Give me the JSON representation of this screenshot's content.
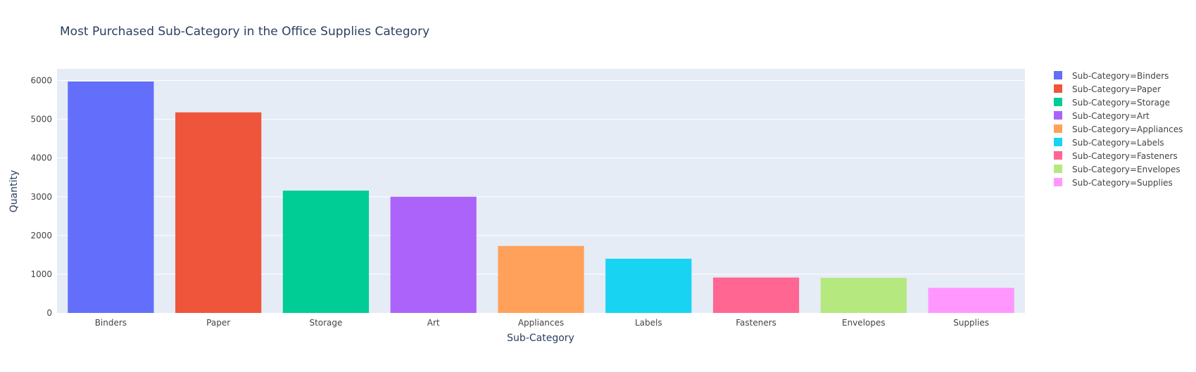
{
  "chart_data": {
    "type": "bar",
    "title": "Most Purchased Sub-Category in the Office Supplies Category",
    "xlabel": "Sub-Category",
    "ylabel": "Quantity",
    "ylim": [
      0,
      6300
    ],
    "yticks": [
      0,
      1000,
      2000,
      3000,
      4000,
      5000,
      6000
    ],
    "grid": true,
    "legend_position": "right",
    "categories": [
      "Binders",
      "Paper",
      "Storage",
      "Art",
      "Appliances",
      "Labels",
      "Fasteners",
      "Envelopes",
      "Supplies"
    ],
    "series": [
      {
        "name": "Sub-Category=Binders",
        "category": "Binders",
        "value": 5974,
        "color": "#636efa"
      },
      {
        "name": "Sub-Category=Paper",
        "category": "Paper",
        "value": 5178,
        "color": "#ef553b"
      },
      {
        "name": "Sub-Category=Storage",
        "category": "Storage",
        "value": 3158,
        "color": "#00cc96"
      },
      {
        "name": "Sub-Category=Art",
        "category": "Art",
        "value": 3000,
        "color": "#ab63fa"
      },
      {
        "name": "Sub-Category=Appliances",
        "category": "Appliances",
        "value": 1729,
        "color": "#ffa15a"
      },
      {
        "name": "Sub-Category=Labels",
        "category": "Labels",
        "value": 1400,
        "color": "#19d3f3"
      },
      {
        "name": "Sub-Category=Fasteners",
        "category": "Fasteners",
        "value": 914,
        "color": "#ff6692"
      },
      {
        "name": "Sub-Category=Envelopes",
        "category": "Envelopes",
        "value": 906,
        "color": "#b6e880"
      },
      {
        "name": "Sub-Category=Supplies",
        "category": "Supplies",
        "value": 647,
        "color": "#ff97ff"
      }
    ],
    "colors": {
      "plot_background": "#e5ecf6",
      "grid": "#ffffff",
      "text": "#444444",
      "title_text": "#2a3f5f"
    }
  }
}
